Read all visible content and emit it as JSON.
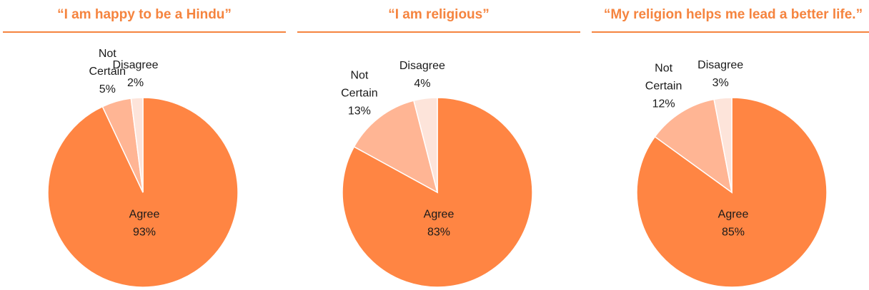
{
  "colors": {
    "title": "#f5843f",
    "rule": "#f5843f",
    "agree": "#ff8543",
    "not_certain": "#ffb594",
    "disagree": "#fde4da",
    "edge": "#ffffff",
    "text": "#1a1a1a"
  },
  "chart_data": [
    {
      "type": "pie",
      "title": "“I am happy to be a Hindu”",
      "slices": [
        {
          "label": "Agree",
          "value": 93,
          "value_label": "93%",
          "label_lines": [
            "Agree"
          ]
        },
        {
          "label": "Not Certain",
          "value": 5,
          "value_label": "5%",
          "label_lines": [
            "Not",
            "Certain"
          ]
        },
        {
          "label": "Disagree",
          "value": 2,
          "value_label": "2%",
          "label_lines": [
            "Disagree"
          ]
        }
      ]
    },
    {
      "type": "pie",
      "title": "“I am religious”",
      "slices": [
        {
          "label": "Agree",
          "value": 83,
          "value_label": "83%",
          "label_lines": [
            "Agree"
          ]
        },
        {
          "label": "Not Certain",
          "value": 13,
          "value_label": "13%",
          "label_lines": [
            "Not",
            "Certain"
          ]
        },
        {
          "label": "Disagree",
          "value": 4,
          "value_label": "4%",
          "label_lines": [
            "Disagree"
          ]
        }
      ]
    },
    {
      "type": "pie",
      "title": "“My religion helps me lead a better life.”",
      "slices": [
        {
          "label": "Agree",
          "value": 85,
          "value_label": "85%",
          "label_lines": [
            "Agree"
          ]
        },
        {
          "label": "Not Certain",
          "value": 12,
          "value_label": "12%",
          "label_lines": [
            "Not",
            "Certain"
          ]
        },
        {
          "label": "Disagree",
          "value": 3,
          "value_label": "3%",
          "label_lines": [
            "Disagree"
          ]
        }
      ]
    }
  ]
}
